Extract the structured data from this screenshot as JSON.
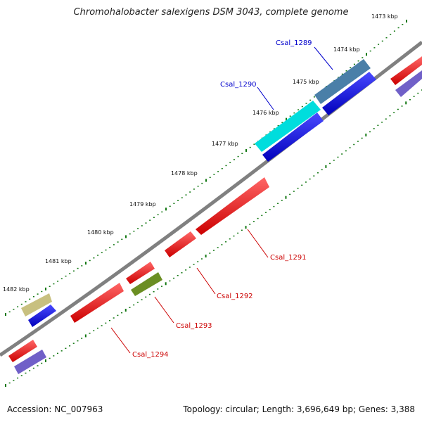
{
  "header": {
    "title": "Chromohalobacter salexigens DSM 3043, complete genome"
  },
  "footer": {
    "accession": "Accession: NC_007963",
    "summary": "Topology: circular; Length: 3,696,649 bp; Genes: 3,388"
  },
  "ruler": {
    "labels": [
      "1473 kbp",
      "1474 kbp",
      "1475 kbp",
      "1476 kbp",
      "1477 kbp",
      "1478 kbp",
      "1479 kbp",
      "1480 kbp",
      "1481 kbp",
      "1482 kbp"
    ]
  },
  "genes": [
    {
      "name": "Csal_1289",
      "color": "#0000cc"
    },
    {
      "name": "Csal_1290",
      "color": "#0000cc"
    },
    {
      "name": "Csal_1291",
      "color": "#cc0000"
    },
    {
      "name": "Csal_1292",
      "color": "#cc0000"
    },
    {
      "name": "Csal_1293",
      "color": "#cc0000"
    },
    {
      "name": "Csal_1294",
      "color": "#cc0000"
    }
  ],
  "colors": {
    "backbone": "#808080",
    "tick": "#117711",
    "forward_cds": "#0000dd",
    "reverse_cds": "#ee0000",
    "feature_cyan": "#00cccc",
    "feature_steelblue": "#4a7fa8",
    "feature_khaki": "#b8b070",
    "feature_olive": "#6b8e23",
    "feature_slate": "#7060c8"
  }
}
